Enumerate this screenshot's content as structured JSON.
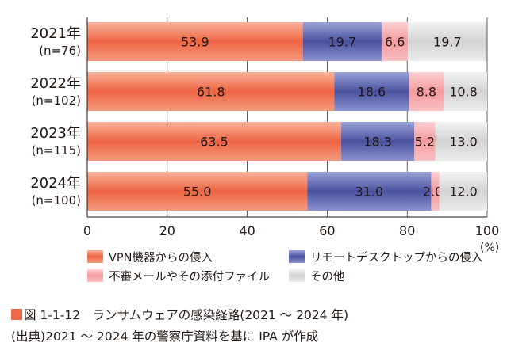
{
  "chart_data": {
    "type": "bar",
    "stacked": true,
    "orientation": "horizontal",
    "categories": [
      {
        "year": "2021年",
        "n": "(n=76)"
      },
      {
        "year": "2022年",
        "n": "(n=102)"
      },
      {
        "year": "2023年",
        "n": "(n=115)"
      },
      {
        "year": "2024年",
        "n": "(n=100)"
      }
    ],
    "series": [
      {
        "name": "VPN機器からの侵入",
        "color": "#ef6a4a",
        "values": [
          53.9,
          61.8,
          63.5,
          55.0
        ],
        "labels": [
          "53.9",
          "61.8",
          "63.5",
          "55.0"
        ]
      },
      {
        "name": "リモートデスクトップからの侵入",
        "color": "#4e56a6",
        "values": [
          19.7,
          18.6,
          18.3,
          31.0
        ],
        "labels": [
          "19.7",
          "18.6",
          "18.3",
          "31.0"
        ]
      },
      {
        "name": "不審メールやその添付ファイル",
        "color": "#f6a0a3",
        "values": [
          6.6,
          8.8,
          5.2,
          2.0
        ],
        "labels": [
          "6.6",
          "8.8",
          "5.2",
          "2.0"
        ]
      },
      {
        "name": "その他",
        "color": "#d9d9d9",
        "values": [
          19.7,
          10.8,
          13.0,
          12.0
        ],
        "labels": [
          "19.7",
          "10.8",
          "13.0",
          "12.0"
        ]
      }
    ],
    "xlim": [
      0,
      100
    ],
    "xticks": [
      "0",
      "20",
      "40",
      "60",
      "80",
      "100"
    ],
    "xunit": "(%)",
    "legend_position": "bottom"
  },
  "figure": {
    "label": "図 1-1-12",
    "title": "ランサムウェアの感染経路(2021 ～ 2024 年)",
    "accent_color": "#ef6a4a",
    "source": "(出典)2021 ～ 2024 年の警察庁資料を基に IPA が作成"
  }
}
